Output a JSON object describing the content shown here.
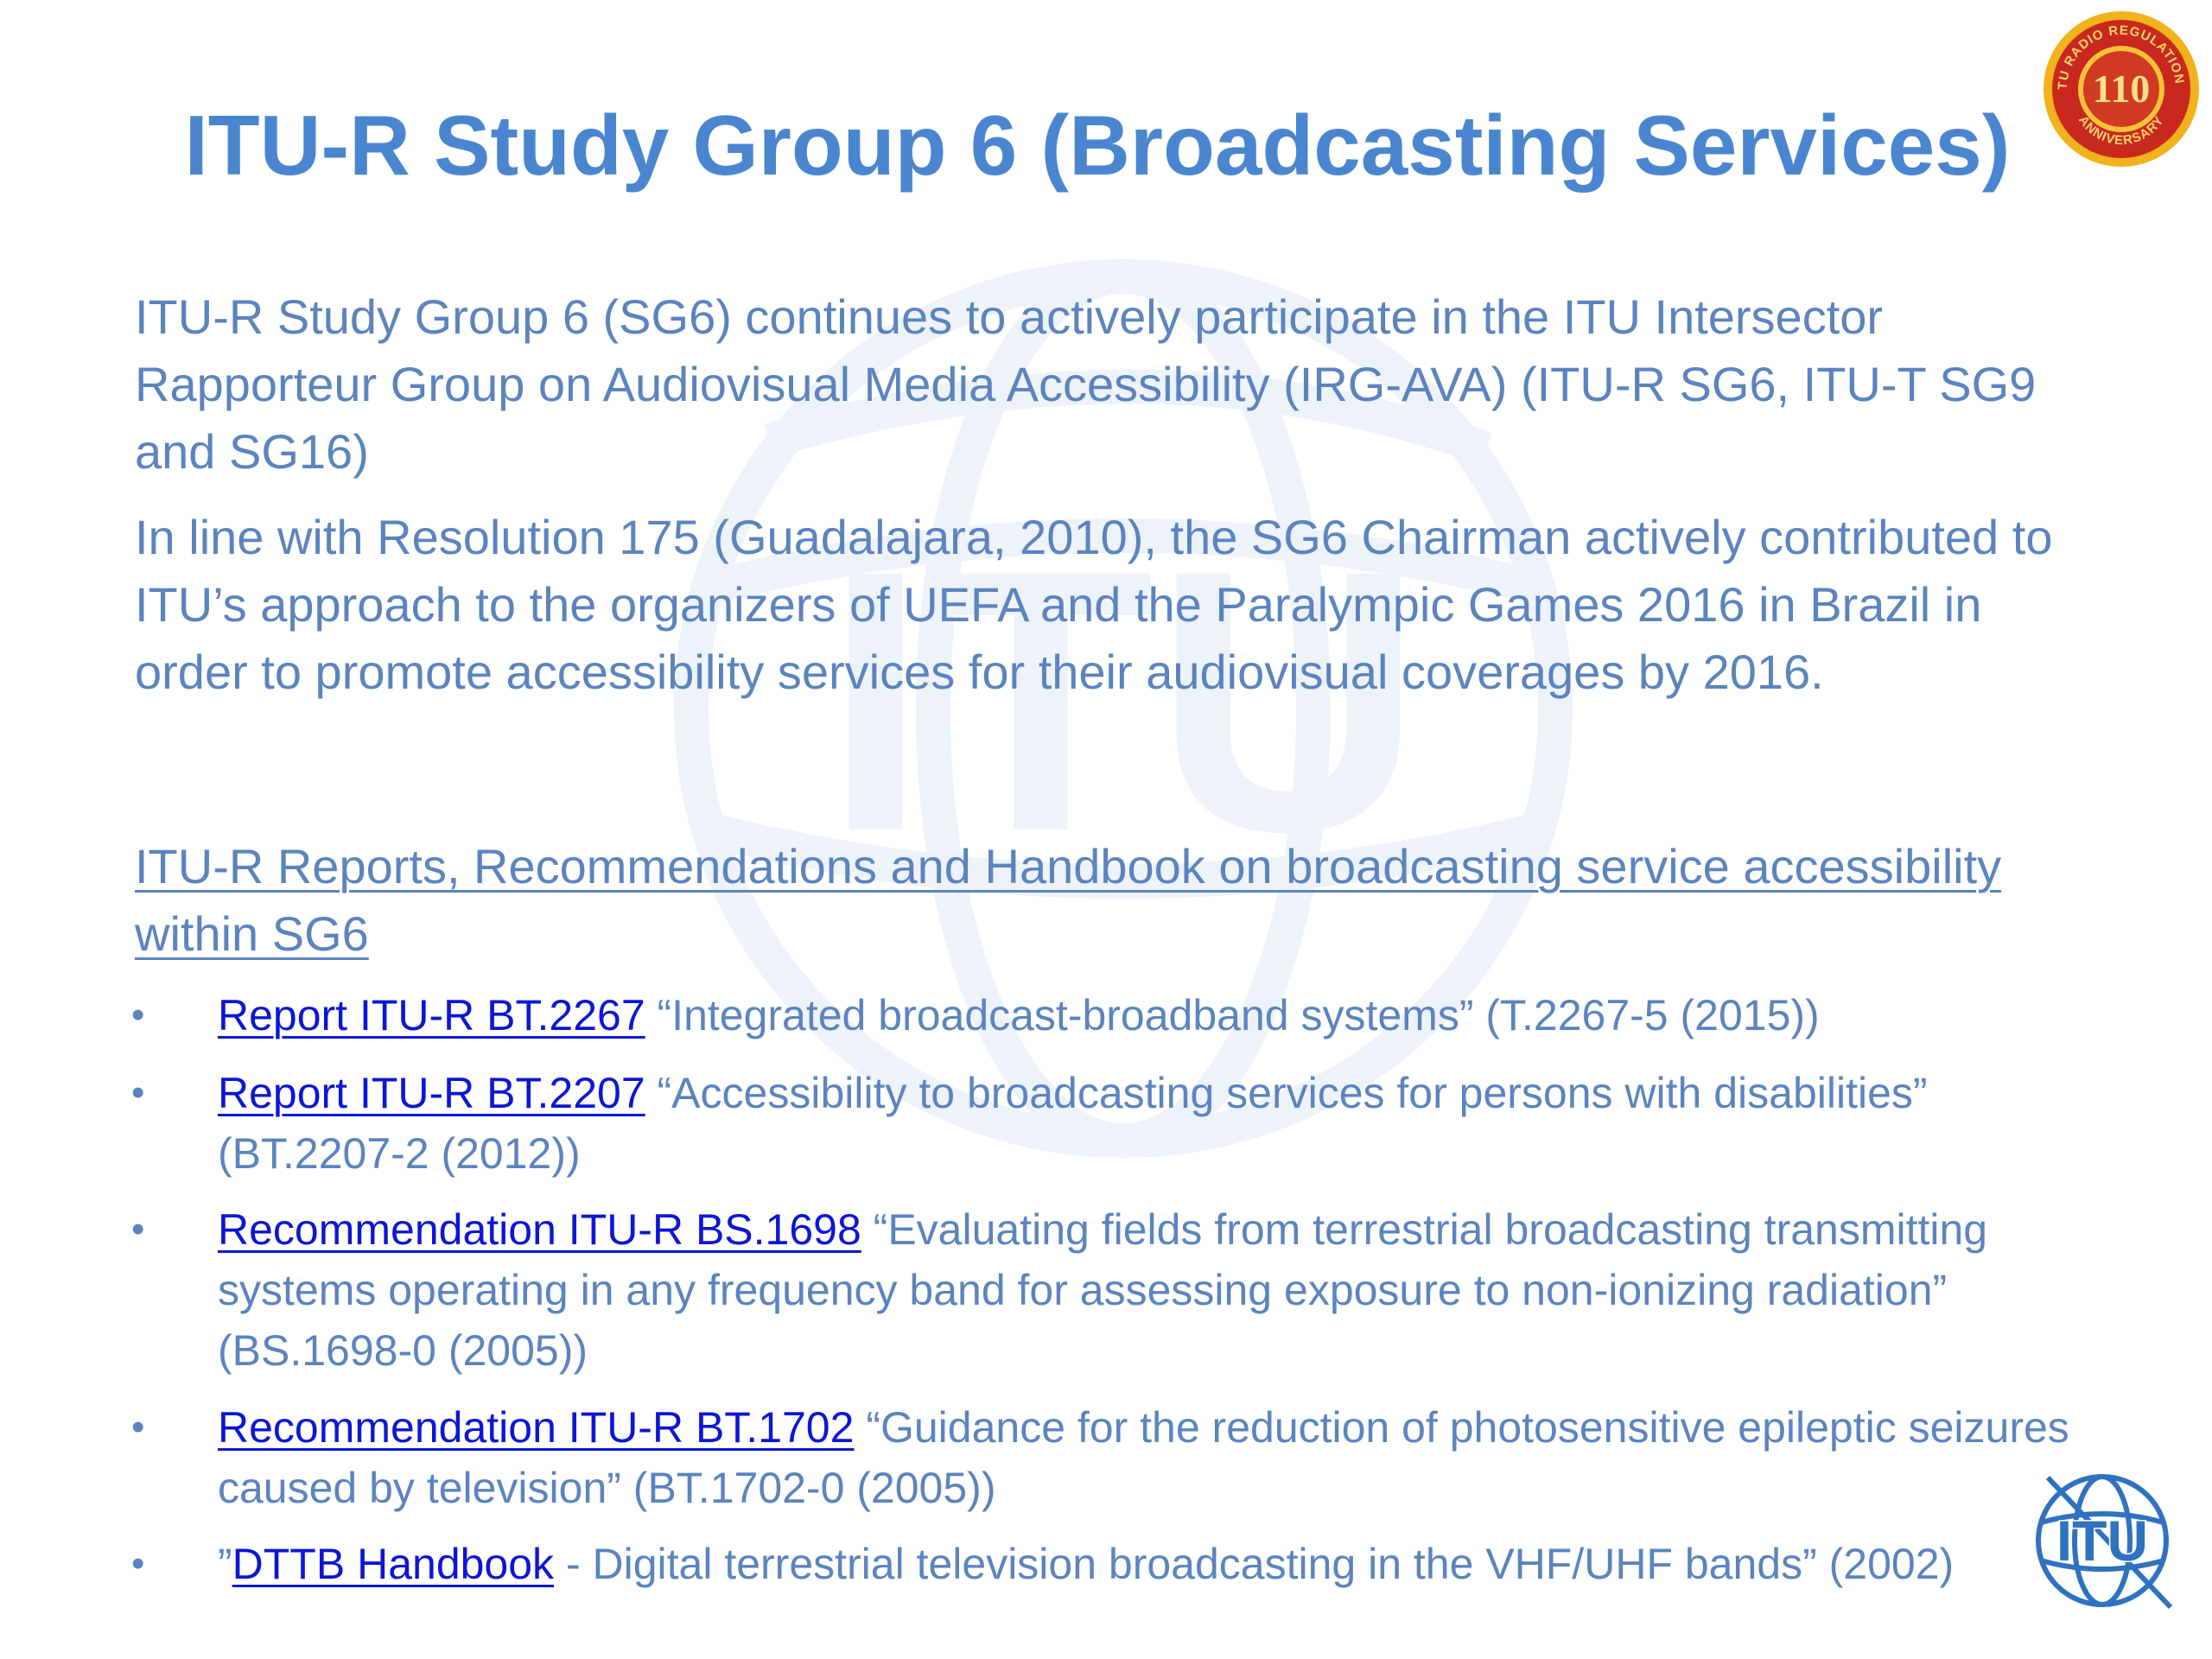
{
  "slide": {
    "title": "ITU-R Study Group 6 (Broadcasting Services)",
    "paragraph1": "ITU-R Study Group 6 (SG6) continues to actively participate in the ITU Intersector Rapporteur Group on Audiovisual Media Accessibility (IRG-AVA) (ITU-R SG6, ITU-T SG9 and SG16)",
    "paragraph2": "In line with Resolution 175 (Guadalajara, 2010), the SG6 Chairman actively contributed to ITU’s approach to the organizers of UEFA and the Paralympic Games 2016 in Brazil in order to promote accessibility services for their audiovisual coverages by 2016.",
    "section_link": "ITU-R Reports, Recommendations and Handbook on broadcasting service accessibility within SG6",
    "bullet_symbol": "•",
    "items": [
      {
        "prefix": "",
        "link": "Report ITU-R BT.2267",
        "text": " “Integrated broadcast-broadband systems” (T.2267-5 (2015))"
      },
      {
        "prefix": "",
        "link": "Report ITU-R BT.2207",
        "text": " “Accessibility to broadcasting services for persons with disabilities” (BT.2207-2 (2012))"
      },
      {
        "prefix": "",
        "link": "Recommendation ITU-R BS.1698",
        "text": " “Evaluating fields from terrestrial broadcasting transmitting systems operating in any frequency band for assessing exposure to non-ionizing radiation” (BS.1698-0 (2005))"
      },
      {
        "prefix": "",
        "link": "Recommendation ITU-R BT.1702",
        "text": " “Guidance for the reduction of photosensitive epileptic seizures caused by television” (BT.1702-0 (2005))"
      },
      {
        "prefix": "”",
        "link": "DTTB Handbook",
        "text": " - Digital terrestrial television broadcasting in the VHF/UHF bands” (2002)"
      }
    ]
  },
  "badge": {
    "number": "110",
    "ring_text": "ITU RADIO REGULATIONS",
    "bottom_text": "ANNIVERSARY"
  },
  "watermark": {
    "text": "ITU"
  },
  "logo": {
    "text": "ITU"
  },
  "colors": {
    "title": "#4a86d0",
    "body": "#5b84bf",
    "link": "#0b16d6",
    "badge_red": "#c8281e",
    "badge_gold": "#f2b21b"
  }
}
